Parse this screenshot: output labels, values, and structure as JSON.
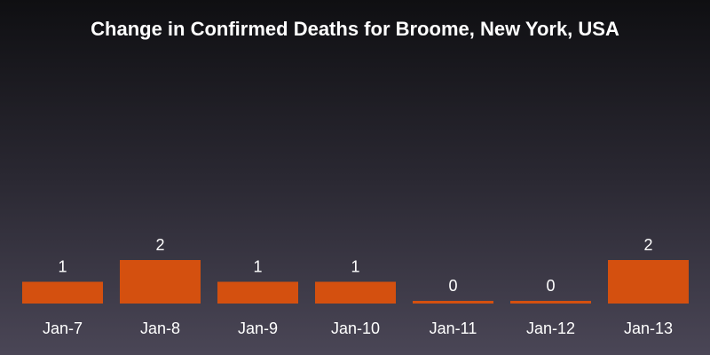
{
  "chart_data": {
    "type": "bar",
    "title": "Change in Confirmed Deaths for Broome, New York, USA",
    "categories": [
      "Jan-7",
      "Jan-8",
      "Jan-9",
      "Jan-10",
      "Jan-11",
      "Jan-12",
      "Jan-13"
    ],
    "values": [
      1,
      2,
      1,
      1,
      0,
      0,
      2
    ],
    "data_labels": [
      "1",
      "2",
      "1",
      "1",
      "0",
      "0",
      "2"
    ],
    "xlabel": "",
    "ylabel": "",
    "ylim": [
      0,
      2
    ],
    "grid": false,
    "legend": "none",
    "colors": {
      "bar": "#d4500f",
      "text": "#ffffff"
    }
  }
}
